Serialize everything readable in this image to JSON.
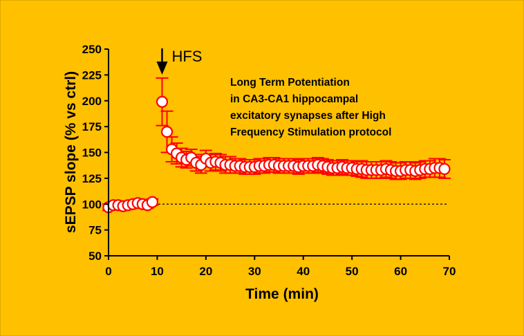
{
  "chart_data": {
    "type": "scatter",
    "title": "",
    "xlabel": "Time (min)",
    "ylabel": "sEPSP slope (% vs ctrl)",
    "xlim": [
      0,
      70
    ],
    "ylim": [
      50,
      250
    ],
    "xticks": [
      0,
      10,
      20,
      30,
      40,
      50,
      60,
      70
    ],
    "yticks": [
      50,
      75,
      100,
      125,
      150,
      175,
      200,
      225,
      250
    ],
    "grid": false,
    "reference_line": {
      "y": 100,
      "style": "dashed"
    },
    "arrow_annotation": {
      "x": 11,
      "label": "HFS"
    },
    "text_annotation": [
      "Long Term Potentiation",
      "in CA3-CA1 hippocampal",
      "excitatory synapses after High",
      "Frequency Stimulation protocol"
    ],
    "colors": {
      "marker_edge": "#FF0000",
      "marker_fill": "#FFFFFF",
      "error_bar": "#FF0000",
      "background": "#FFC000"
    },
    "series": [
      {
        "x": [
          0,
          1,
          2,
          3,
          4,
          5,
          6,
          7,
          8,
          9,
          11,
          12,
          13,
          14,
          15,
          16,
          17,
          18,
          19,
          20,
          21,
          22,
          23,
          24,
          25,
          26,
          27,
          28,
          29,
          30,
          31,
          32,
          33,
          34,
          35,
          36,
          37,
          38,
          39,
          40,
          41,
          42,
          43,
          44,
          45,
          46,
          47,
          48,
          49,
          50,
          51,
          52,
          53,
          54,
          55,
          56,
          57,
          58,
          59,
          60,
          61,
          62,
          63,
          64,
          65,
          66,
          67,
          68,
          69
        ],
        "y": [
          97,
          99,
          99,
          98,
          99,
          100,
          101,
          100,
          99,
          102,
          199,
          170,
          153,
          149,
          145,
          143,
          145,
          140,
          138,
          144,
          140,
          141,
          140,
          138,
          138,
          137,
          137,
          136,
          136,
          136,
          137,
          137,
          138,
          138,
          137,
          137,
          137,
          137,
          136,
          137,
          137,
          137,
          138,
          137,
          136,
          135,
          135,
          136,
          135,
          135,
          134,
          134,
          133,
          133,
          133,
          133,
          134,
          133,
          132,
          132,
          133,
          133,
          132,
          133,
          134,
          134,
          135,
          135,
          134
        ],
        "err": [
          3,
          3,
          3,
          3,
          3,
          3,
          3,
          3,
          3,
          3,
          23,
          20,
          12,
          10,
          9,
          8,
          8,
          8,
          8,
          8,
          8,
          8,
          8,
          8,
          8,
          7,
          7,
          7,
          7,
          7,
          7,
          7,
          7,
          7,
          7,
          7,
          7,
          7,
          7,
          7,
          7,
          7,
          7,
          7,
          7,
          7,
          7,
          7,
          7,
          7,
          7,
          8,
          8,
          8,
          8,
          8,
          8,
          8,
          8,
          8,
          8,
          8,
          8,
          8,
          8,
          8,
          9,
          9,
          9
        ]
      }
    ]
  }
}
